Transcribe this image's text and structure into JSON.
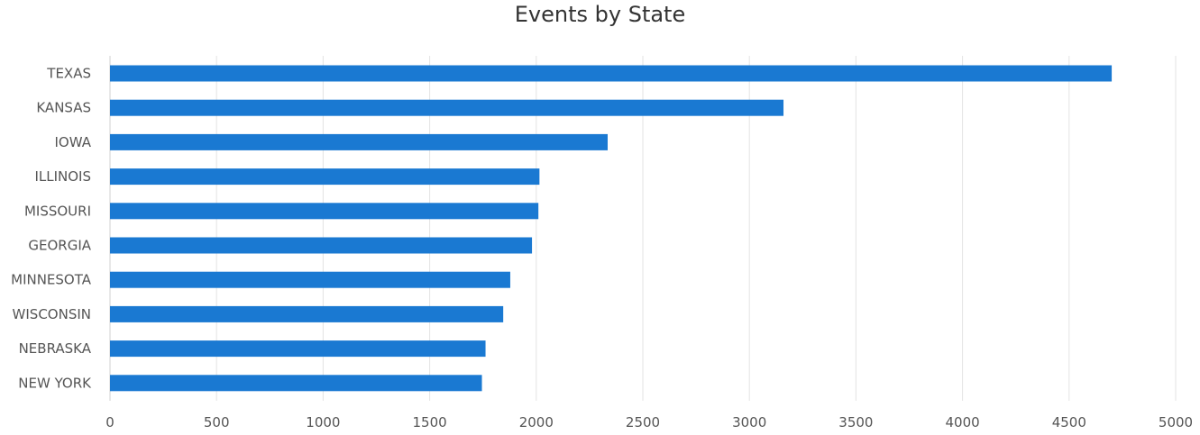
{
  "chart_data": {
    "type": "bar",
    "orientation": "horizontal",
    "title": "Events by State",
    "categories": [
      "TEXAS",
      "KANSAS",
      "IOWA",
      "ILLINOIS",
      "MISSOURI",
      "GEORGIA",
      "MINNESOTA",
      "WISCONSIN",
      "NEBRASKA",
      "NEW YORK"
    ],
    "values": [
      4700,
      3160,
      2335,
      2015,
      2010,
      1980,
      1878,
      1845,
      1762,
      1745
    ],
    "xlim": [
      0,
      5000
    ],
    "xticks": [
      0,
      500,
      1000,
      1500,
      2000,
      2500,
      3000,
      3500,
      4000,
      4500,
      5000
    ],
    "grid": "vertical",
    "bar_color": "#1a79d2",
    "grid_color": "#e3e3e3",
    "axis_color": "#d0d0d0"
  }
}
